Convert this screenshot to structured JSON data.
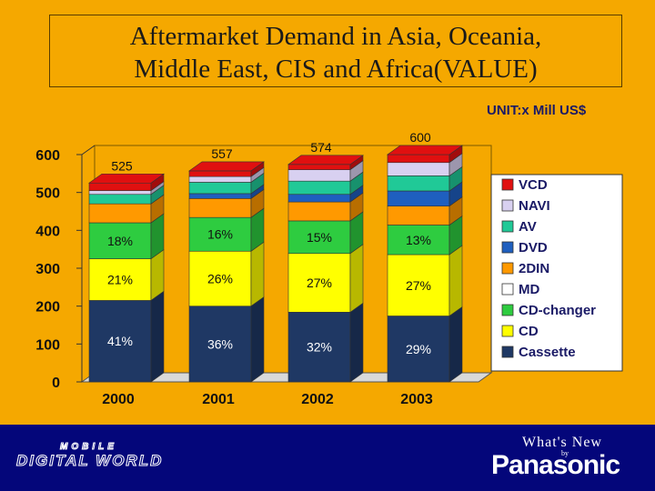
{
  "title_line1": "Aftermarket Demand in Asia, Oceania,",
  "title_line2": "Middle East, CIS and Africa(VALUE)",
  "unit_label": "UNIT:x Mill US$",
  "footer": {
    "mobile_text": "MOBILE",
    "digital_world_text": "DIGITAL WORLD",
    "whats_new_text": "What's New",
    "by_text": "by",
    "brand_text": "Panasonic"
  },
  "colors": {
    "background": "#f5a800",
    "footer": "#04067a",
    "Cassette": "#1f3864",
    "CD": "#ffff00",
    "CD-changer": "#2ecc40",
    "MD": "#ffffff",
    "2DIN": "#ff9900",
    "DVD": "#1f5fbf",
    "AV": "#20c997",
    "NAVI": "#d8d0f0",
    "VCD": "#e01010"
  },
  "chart_data": {
    "type": "bar",
    "stacked": true,
    "three_d": true,
    "categories": [
      "2000",
      "2001",
      "2002",
      "2003"
    ],
    "ylim": [
      0,
      600
    ],
    "yticks": [
      0,
      100,
      200,
      300,
      400,
      500,
      600
    ],
    "grid": false,
    "legend_position": "right",
    "series": [
      {
        "name": "Cassette",
        "values": [
          215,
          200,
          184,
          174
        ]
      },
      {
        "name": "CD",
        "values": [
          110,
          145,
          155,
          162
        ]
      },
      {
        "name": "CD-changer",
        "values": [
          95,
          89,
          86,
          78
        ]
      },
      {
        "name": "MD",
        "values": [
          0,
          0,
          0,
          0
        ]
      },
      {
        "name": "2DIN",
        "values": [
          50,
          50,
          50,
          50
        ]
      },
      {
        "name": "DVD",
        "values": [
          0,
          13,
          20,
          40
        ]
      },
      {
        "name": "AV",
        "values": [
          25,
          30,
          35,
          40
        ]
      },
      {
        "name": "NAVI",
        "values": [
          10,
          15,
          30,
          35
        ]
      },
      {
        "name": "VCD",
        "values": [
          20,
          15,
          14,
          21
        ]
      }
    ],
    "totals": [
      "525",
      "557",
      "574",
      "600"
    ],
    "segment_labels": [
      {
        "series": "Cassette",
        "labels": [
          "41%",
          "36%",
          "32%",
          "29%"
        ]
      },
      {
        "series": "CD",
        "labels": [
          "21%",
          "26%",
          "27%",
          "27%"
        ]
      },
      {
        "series": "CD-changer",
        "labels": [
          "18%",
          "16%",
          "15%",
          "13%"
        ]
      }
    ],
    "legend": [
      "VCD",
      "NAVI",
      "AV",
      "DVD",
      "2DIN",
      "MD",
      "CD-changer",
      "CD",
      "Cassette"
    ]
  }
}
